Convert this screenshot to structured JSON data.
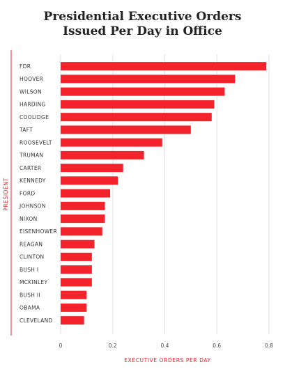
{
  "chart_data": {
    "type": "bar",
    "orientation": "horizontal",
    "title_lines": [
      "Presidential Executive Orders",
      "Issued Per Day in Office"
    ],
    "xlabel": "EXECUTIVE ORDERS PER DAY",
    "ylabel": "PRESIDENT",
    "categories": [
      "FDR",
      "HOOVER",
      "WILSON",
      "HARDING",
      "COOLIDGE",
      "TAFT",
      "ROOSEVELT",
      "TRUMAN",
      "CARTER",
      "KENNEDY",
      "FORD",
      "JOHNSON",
      "NIXON",
      "EISENHOWER",
      "REAGAN",
      "CLINTON",
      "BUSH I",
      "MCKINLEY",
      "BUSH II",
      "OBAMA",
      "CLEVELAND"
    ],
    "values": [
      0.79,
      0.67,
      0.63,
      0.59,
      0.58,
      0.5,
      0.39,
      0.32,
      0.24,
      0.22,
      0.19,
      0.17,
      0.17,
      0.16,
      0.13,
      0.12,
      0.12,
      0.12,
      0.1,
      0.1,
      0.09
    ],
    "xlim": [
      0,
      0.8
    ],
    "xticks": [
      "0",
      "0.2",
      "0.4",
      "0.6",
      "0.8"
    ],
    "grid": true,
    "bar_color": "#f2232b",
    "accent_color": "#e8232a",
    "grid_color": "#e2e2e2"
  }
}
